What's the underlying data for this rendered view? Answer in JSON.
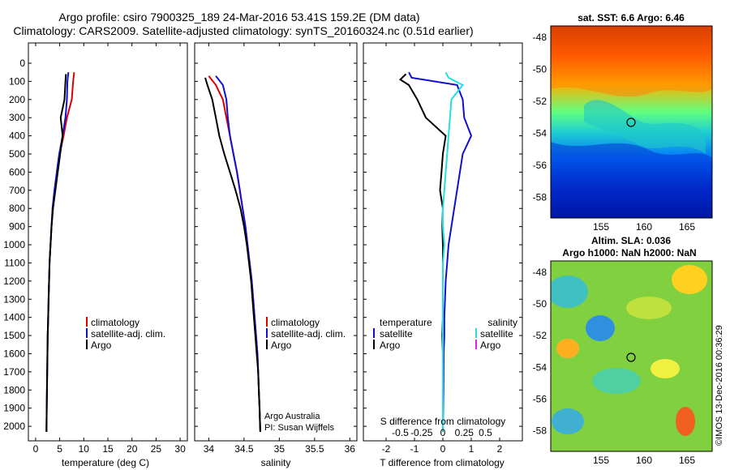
{
  "header": {
    "title_line1": "Argo profile: csiro 7900325_189 24-Mar-2016 53.41S 159.2E (DM data)",
    "title_line2": "Climatology: CARS2009. Satellite-adjusted climatology: synTS_20160324.nc (0.51d earlier)"
  },
  "colors": {
    "climatology": "#e00000",
    "satellite": "#1010d0",
    "argo": "#000000",
    "satellite_salinity": "#20e0e0",
    "argo_salinity": "#e020e0"
  },
  "chart_data": [
    {
      "type": "line",
      "id": "temperature",
      "xlabel": "temperature (deg C)",
      "xlim": [
        -1.5,
        31.5
      ],
      "ylim": [
        2080,
        0
      ],
      "xticks": [
        0,
        5,
        10,
        15,
        20,
        25,
        30
      ],
      "yticks": [
        0,
        100,
        200,
        300,
        400,
        500,
        600,
        700,
        800,
        900,
        1000,
        1100,
        1200,
        1300,
        1400,
        1500,
        1600,
        1700,
        1800,
        1900,
        2000
      ],
      "legend": [
        "climatology",
        "satellite-adj. clim.",
        "Argo"
      ],
      "series": [
        {
          "name": "climatology",
          "color": "#e00000",
          "x": [
            8.0,
            7.8,
            7.5,
            6.5,
            5.8,
            5.0,
            4.5,
            4.0,
            3.6,
            3.3,
            3.1,
            2.9,
            2.8,
            2.7,
            2.6,
            2.5,
            2.45,
            2.4,
            2.35,
            2.3,
            2.25
          ],
          "y": [
            50,
            100,
            200,
            300,
            400,
            500,
            600,
            700,
            800,
            900,
            1000,
            1100,
            1200,
            1300,
            1400,
            1500,
            1600,
            1700,
            1800,
            1900,
            2030
          ]
        },
        {
          "name": "satellite-adj. clim.",
          "color": "#1010d0",
          "x": [
            6.8,
            6.6,
            6.5,
            6.2,
            5.6,
            4.9,
            4.4,
            3.9,
            3.5,
            3.3,
            3.1,
            2.9,
            2.8,
            2.7,
            2.6,
            2.5,
            2.45,
            2.4,
            2.35,
            2.3,
            2.25
          ],
          "y": [
            50,
            100,
            200,
            300,
            400,
            500,
            600,
            700,
            800,
            900,
            1000,
            1100,
            1200,
            1300,
            1400,
            1500,
            1600,
            1700,
            1800,
            1900,
            2030
          ]
        },
        {
          "name": "Argo",
          "color": "#000000",
          "x": [
            6.3,
            6.2,
            6.0,
            5.2,
            5.6,
            5.1,
            4.6,
            4.1,
            3.6,
            3.3,
            3.1,
            2.9,
            2.8,
            2.7,
            2.6,
            2.5,
            2.45,
            2.4,
            2.35,
            2.3,
            2.25
          ],
          "y": [
            60,
            100,
            200,
            300,
            400,
            500,
            600,
            700,
            800,
            900,
            1000,
            1100,
            1200,
            1300,
            1400,
            1500,
            1600,
            1700,
            1800,
            1900,
            2030
          ]
        }
      ]
    },
    {
      "type": "line",
      "id": "salinity",
      "xlabel": "salinity",
      "xlim": [
        33.8,
        36.1
      ],
      "ylim": [
        2080,
        0
      ],
      "xticks": [
        34,
        34.5,
        35,
        35.5,
        36
      ],
      "legend": [
        "climatology",
        "satellite-adj. clim.",
        "Argo"
      ],
      "annotations": [
        "Argo Australia",
        "PI: Susan Wijffels"
      ],
      "series": [
        {
          "name": "climatology",
          "color": "#e00000",
          "x": [
            34.0,
            34.1,
            34.2,
            34.25,
            34.3,
            34.35,
            34.4,
            34.44,
            34.48,
            34.52,
            34.55,
            34.58,
            34.61,
            34.63,
            34.65,
            34.67,
            34.69,
            34.7,
            34.71,
            34.72,
            34.73
          ],
          "y": [
            70,
            120,
            200,
            300,
            400,
            500,
            600,
            700,
            800,
            900,
            1000,
            1100,
            1200,
            1300,
            1400,
            1500,
            1600,
            1700,
            1800,
            1900,
            2030
          ]
        },
        {
          "name": "satellite-adj. clim.",
          "color": "#1010d0",
          "x": [
            34.1,
            34.2,
            34.25,
            34.27,
            34.3,
            34.35,
            34.4,
            34.44,
            34.48,
            34.52,
            34.55,
            34.58,
            34.61,
            34.63,
            34.65,
            34.67,
            34.69,
            34.7,
            34.71,
            34.72,
            34.73
          ],
          "y": [
            70,
            120,
            200,
            300,
            400,
            500,
            600,
            700,
            800,
            900,
            1000,
            1100,
            1200,
            1300,
            1400,
            1500,
            1600,
            1700,
            1800,
            1900,
            2030
          ]
        },
        {
          "name": "Argo",
          "color": "#000000",
          "x": [
            33.95,
            33.98,
            34.05,
            34.1,
            34.15,
            34.22,
            34.3,
            34.38,
            34.45,
            34.5,
            34.54,
            34.57,
            34.6,
            34.62,
            34.64,
            34.66,
            34.68,
            34.7,
            34.71,
            34.72,
            34.73
          ],
          "y": [
            80,
            120,
            200,
            300,
            400,
            500,
            600,
            700,
            800,
            900,
            1000,
            1100,
            1200,
            1300,
            1400,
            1500,
            1600,
            1700,
            1800,
            1900,
            2030
          ]
        }
      ]
    },
    {
      "type": "line",
      "id": "difference",
      "xlabel": "T difference from climatology",
      "xlabel2": "S difference from climatology",
      "xlim": [
        -2.8,
        2.8
      ],
      "ylim": [
        2080,
        0
      ],
      "xticks": [
        -2,
        -1,
        0,
        1,
        2
      ],
      "xticks2": [
        "-0.5",
        "-0.25",
        "0",
        "0.25",
        "0.5"
      ],
      "legend_left_title": "temperature",
      "legend_left": [
        "satellite",
        "Argo"
      ],
      "legend_right_title": "salinity",
      "legend_right": [
        "satellite",
        "Argo"
      ],
      "series": [
        {
          "name": "temperature satellite",
          "color": "#1010d0",
          "x": [
            -1.2,
            -1.1,
            0.5,
            0.7,
            0.75,
            1.0,
            0.7,
            0.6,
            0.5,
            0.4,
            0.3,
            0.2,
            0.15,
            0.1,
            0.05,
            0.05,
            0.03,
            0.02,
            0.01,
            0.0
          ],
          "y": [
            50,
            80,
            120,
            200,
            300,
            400,
            500,
            600,
            700,
            800,
            900,
            1000,
            1100,
            1200,
            1400,
            1500,
            1600,
            1800,
            1900,
            2030
          ]
        },
        {
          "name": "temperature Argo",
          "color": "#000000",
          "x": [
            -1.3,
            -1.5,
            -1.2,
            -0.9,
            -0.6,
            0.1,
            0.0,
            -0.05,
            -0.1,
            0.0,
            -0.02,
            0.0,
            0.0,
            0.0,
            0.0,
            -0.02,
            0.0,
            0.0,
            0.0,
            0.0
          ],
          "y": [
            60,
            90,
            120,
            200,
            300,
            400,
            500,
            600,
            700,
            800,
            900,
            1000,
            1100,
            1200,
            1400,
            1500,
            1600,
            1800,
            1900,
            2030
          ]
        },
        {
          "name": "salinity satellite",
          "color": "#20e0e0",
          "x": [
            0.1,
            0.2,
            0.7,
            0.3,
            0.25,
            0.2,
            0.15,
            0.1,
            0.05,
            0.0,
            0.0,
            0.05,
            0.0,
            0.0,
            0.0,
            0.0,
            0.0,
            0.0,
            0.0,
            0.0
          ],
          "y": [
            50,
            80,
            120,
            200,
            300,
            400,
            500,
            600,
            700,
            800,
            900,
            1000,
            1100,
            1200,
            1400,
            1500,
            1600,
            1800,
            1900,
            2030
          ]
        }
      ]
    }
  ],
  "maps": [
    {
      "id": "sst",
      "title": "sat. SST: 6.6 Argo: 6.46",
      "yticks": [
        "-48",
        "-50",
        "-52",
        "-54",
        "-56",
        "-58"
      ],
      "xticks": [
        "155",
        "160",
        "165"
      ]
    },
    {
      "id": "sla",
      "title": "Altim. SLA: 0.036",
      "title2": "Argo h1000: NaN h2000: NaN",
      "yticks": [
        "-48",
        "-50",
        "-52",
        "-54",
        "-56",
        "-58"
      ],
      "xticks": [
        "155",
        "160",
        "165"
      ]
    }
  ],
  "credit": "©IMOS 13-Dec-2016 00:36:29"
}
